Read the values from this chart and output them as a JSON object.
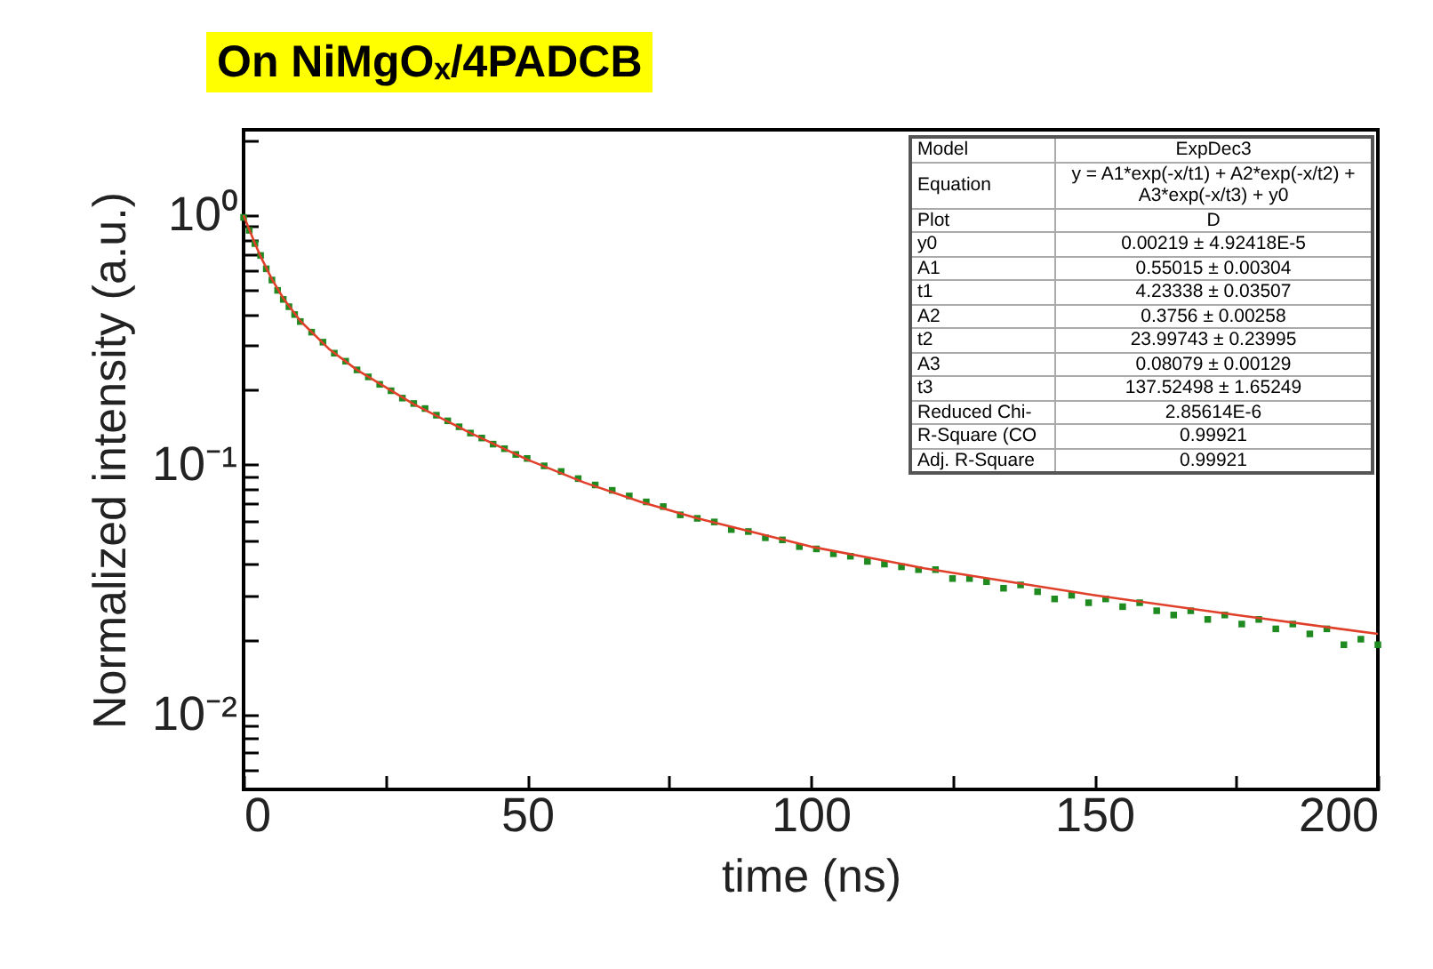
{
  "chart_data": {
    "type": "scatter",
    "title": "On NiMgOₓ/4PADCB",
    "xlabel": "time (ns)",
    "ylabel": "Normalized intensity (a.u.)",
    "xlim": [
      0,
      200
    ],
    "xticks": [
      0,
      {
        "value": 25,
        "label": null
      },
      50,
      {
        "value": 75,
        "label": null
      },
      100,
      {
        "value": 125,
        "label": null
      },
      150,
      {
        "value": 175,
        "label": null
      },
      200
    ],
    "ylim": [
      0.005,
      2.2
    ],
    "log": "y",
    "yticks": [
      {
        "value": 0.006,
        "label": null
      },
      {
        "value": 0.007,
        "label": null
      },
      {
        "value": 0.008,
        "label": null
      },
      {
        "value": 0.009,
        "label": null
      },
      {
        "value": 0.01,
        "label": "10⁻²"
      },
      {
        "value": 0.02,
        "label": null
      },
      {
        "value": 0.03,
        "label": null
      },
      {
        "value": 0.04,
        "label": null
      },
      {
        "value": 0.05,
        "label": null
      },
      {
        "value": 0.06,
        "label": null
      },
      {
        "value": 0.07,
        "label": null
      },
      {
        "value": 0.08,
        "label": null
      },
      {
        "value": 0.09,
        "label": null
      },
      {
        "value": 0.1,
        "label": "10⁻¹"
      },
      {
        "value": 0.2,
        "label": null
      },
      {
        "value": 0.3,
        "label": null
      },
      {
        "value": 0.4,
        "label": null
      },
      {
        "value": 0.5,
        "label": null
      },
      {
        "value": 0.6,
        "label": null
      },
      {
        "value": 0.7,
        "label": null
      },
      {
        "value": 0.8,
        "label": null
      },
      {
        "value": 0.9,
        "label": null
      },
      {
        "value": 1,
        "label": "10⁰"
      },
      {
        "value": 2,
        "label": null
      }
    ],
    "series": [
      {
        "marker": "square",
        "color": "#1f8a1f",
        "x": [
          0,
          1,
          2,
          3,
          4,
          5,
          6,
          7,
          8,
          9,
          10,
          12,
          14,
          16,
          18,
          20,
          22,
          24,
          26,
          28,
          30,
          32,
          34,
          36,
          38,
          40,
          42,
          44,
          46,
          48,
          50,
          53,
          56,
          59,
          62,
          65,
          68,
          71,
          74,
          77,
          80,
          83,
          86,
          89,
          92,
          95,
          98,
          101,
          104,
          107,
          110,
          113,
          116,
          119,
          122,
          125,
          128,
          131,
          134,
          137,
          140,
          143,
          146,
          149,
          152,
          155,
          158,
          161,
          164,
          167,
          170,
          173,
          176,
          179,
          182,
          185,
          188,
          191,
          194,
          197,
          200
        ],
        "values": [
          0.98,
          0.87,
          0.77,
          0.69,
          0.61,
          0.55,
          0.5,
          0.46,
          0.43,
          0.4,
          0.375,
          0.34,
          0.31,
          0.28,
          0.26,
          0.24,
          0.225,
          0.21,
          0.198,
          0.185,
          0.176,
          0.168,
          0.158,
          0.15,
          0.142,
          0.134,
          0.128,
          0.121,
          0.116,
          0.11,
          0.106,
          0.099,
          0.094,
          0.088,
          0.083,
          0.079,
          0.075,
          0.071,
          0.068,
          0.063,
          0.061,
          0.059,
          0.055,
          0.054,
          0.051,
          0.05,
          0.047,
          0.046,
          0.044,
          0.043,
          0.041,
          0.04,
          0.039,
          0.038,
          0.038,
          0.035,
          0.035,
          0.034,
          0.032,
          0.033,
          0.031,
          0.029,
          0.03,
          0.028,
          0.029,
          0.027,
          0.028,
          0.026,
          0.025,
          0.026,
          0.024,
          0.025,
          0.023,
          0.024,
          0.022,
          0.023,
          0.021,
          0.022,
          0.019,
          0.02,
          0.019
        ]
      },
      {
        "type": "line",
        "color": "#e0402a",
        "line_style": "solid",
        "x": [
          0,
          1,
          2,
          3,
          5,
          7,
          10,
          15,
          20,
          30,
          40,
          50,
          60,
          70,
          80,
          100,
          120,
          150,
          175,
          200
        ],
        "values": [
          1.0,
          0.877,
          0.771,
          0.684,
          0.554,
          0.465,
          0.377,
          0.292,
          0.24,
          0.175,
          0.134,
          0.105,
          0.085,
          0.071,
          0.061,
          0.047,
          0.0385,
          0.03,
          0.025,
          0.021
        ]
      }
    ],
    "annotations": [
      "Model",
      "ExpDec3",
      "Equation",
      "y = A1*exp(-x/t1) + A2*exp(-x/t2) + A3*exp(-x/t3) + y0",
      "Plot",
      "D",
      "y0",
      "0.00219 ± 4.92418E-5",
      "A1",
      "0.55015 ± 0.00304",
      "t1",
      "4.23338 ± 0.03507",
      "A2",
      "0.3756 ± 0.00258",
      "t2",
      "23.99743 ± 0.23995",
      "A3",
      "0.08079 ± 0.00129",
      "t3",
      "137.52498 ± 1.65249",
      "Reduced Chi-",
      "2.85614E-6",
      "R-Square (CO",
      "0.99921",
      "Adj. R-Square",
      "0.99921"
    ]
  }
}
